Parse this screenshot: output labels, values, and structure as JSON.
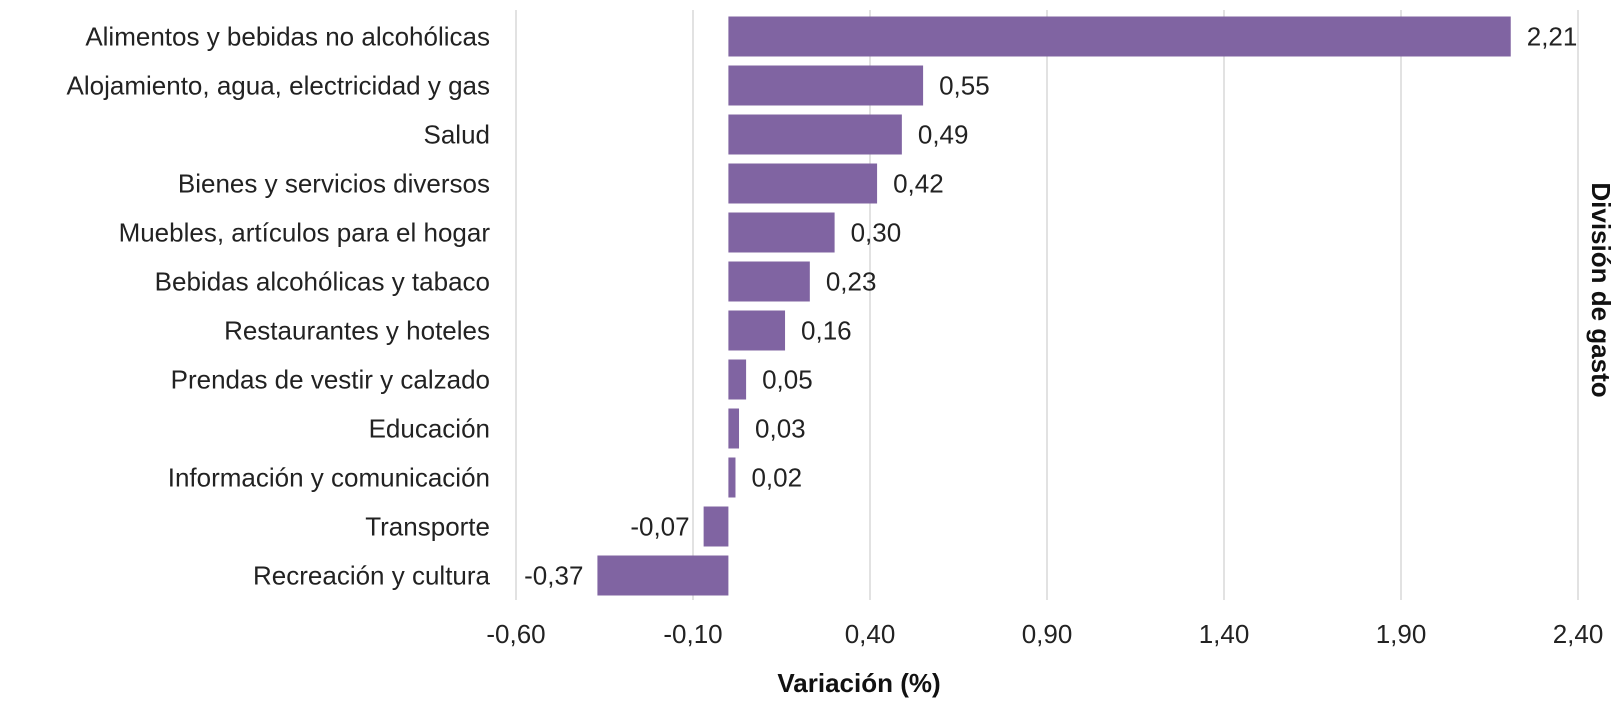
{
  "chart_data": {
    "type": "bar",
    "orientation": "horizontal",
    "categories": [
      "Alimentos y bebidas no alcohólicas",
      "Alojamiento, agua, electricidad y gas",
      "Salud",
      "Bienes y servicios diversos",
      "Muebles, artículos para el hogar ",
      "Bebidas alcohólicas y tabaco",
      "Restaurantes y hoteles",
      "Prendas de vestir y calzado",
      "Educación",
      "Información y comunicación",
      "Transporte",
      "Recreación y cultura"
    ],
    "values": [
      2.21,
      0.55,
      0.49,
      0.42,
      0.3,
      0.23,
      0.16,
      0.05,
      0.03,
      0.02,
      -0.07,
      -0.37
    ],
    "data_labels": [
      "2,21",
      "0,55",
      "0,49",
      "0,42",
      "0,30",
      "0,23",
      "0,16",
      "0,05",
      "0,03",
      "0,02",
      "-0,07",
      "-0,37"
    ],
    "xlabel": "Variación (%)",
    "ylabel": "División de gasto",
    "xlim": [
      -0.6,
      2.4
    ],
    "xticks": [
      -0.6,
      -0.1,
      0.4,
      0.9,
      1.4,
      1.9,
      2.4
    ],
    "xtick_labels": [
      "-0,60",
      "-0,10",
      "0,40",
      "0,90",
      "1,40",
      "1,90",
      "2,40"
    ],
    "grid": "vertical",
    "legend": "none",
    "bar_color": "#8064a2"
  }
}
